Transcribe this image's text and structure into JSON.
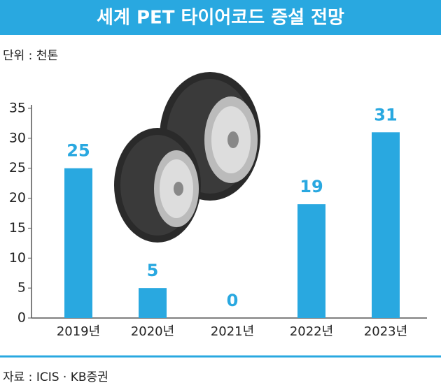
{
  "chart_data": {
    "type": "bar",
    "title": "세계 PET 타이어코드 증설 전망",
    "unit_label": "단위 : 천톤",
    "source": "자료 : ICIS · KB증권",
    "categories": [
      "2019년",
      "2020년",
      "2021년",
      "2022년",
      "2023년"
    ],
    "values": [
      25,
      5,
      0,
      19,
      31
    ],
    "color": "#29a8e0",
    "ylim": [
      0,
      35
    ],
    "yticks": [
      0,
      5,
      10,
      15,
      20,
      25,
      30,
      35
    ],
    "grid": false
  }
}
